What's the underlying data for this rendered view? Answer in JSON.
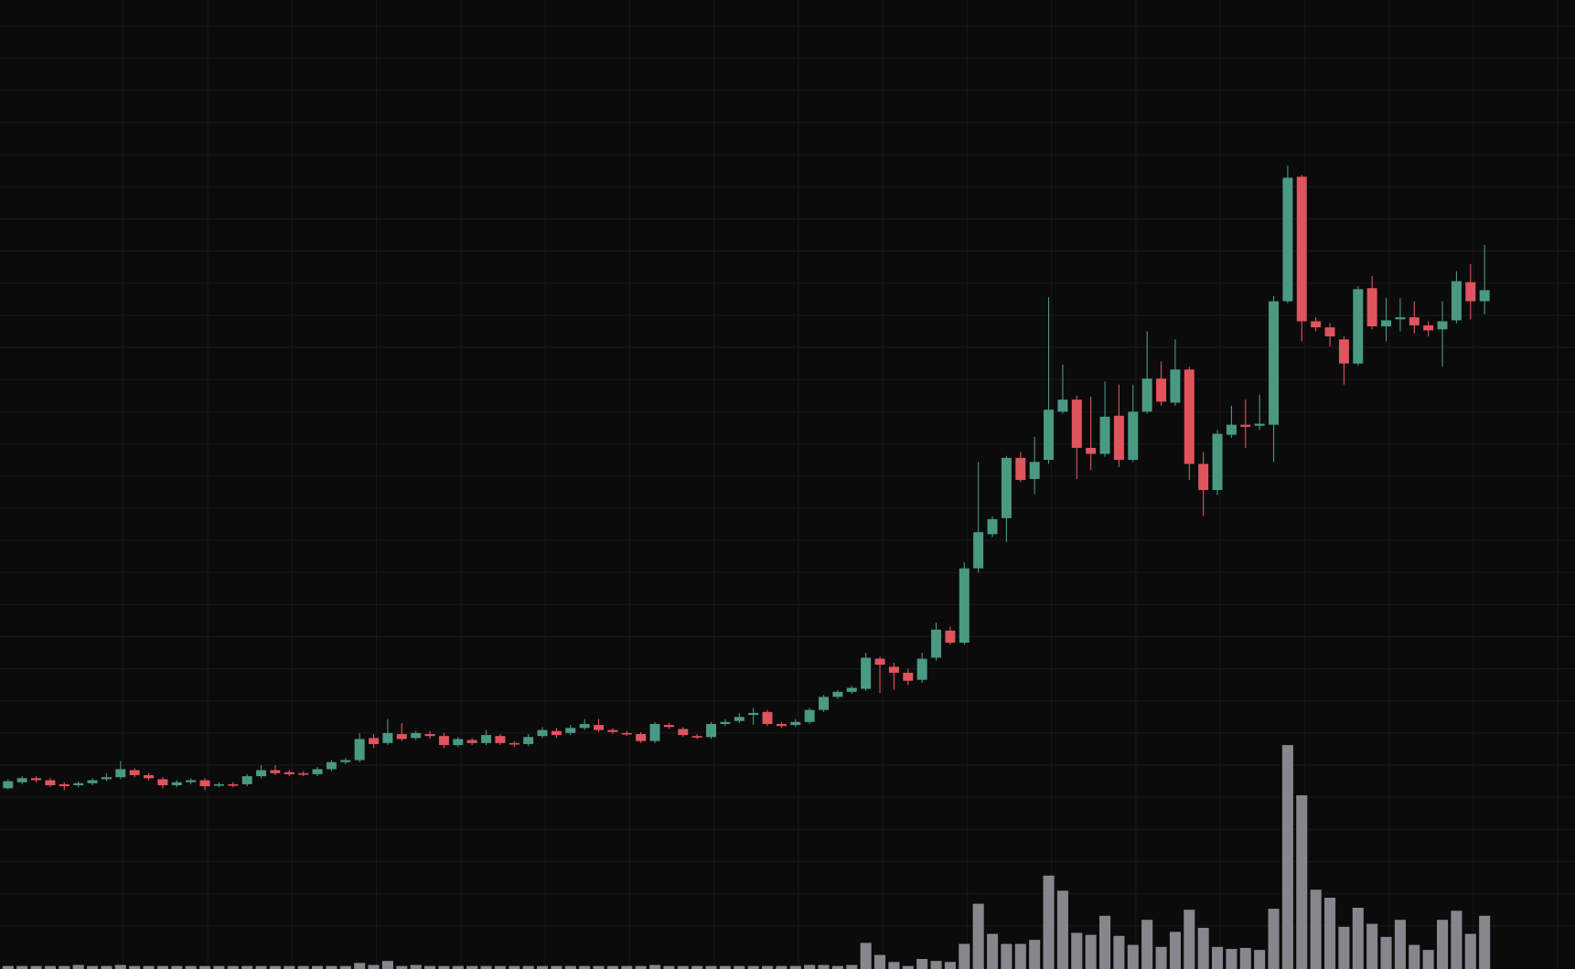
{
  "chart_data": {
    "type": "candlestick",
    "open": [
      180,
      186,
      190,
      188,
      184,
      183,
      185,
      189,
      191,
      198,
      193,
      189,
      183,
      186,
      188,
      183,
      184,
      184,
      192,
      198,
      196,
      195,
      194,
      199,
      206,
      208,
      230,
      225,
      234,
      230,
      234,
      232,
      223,
      228,
      225,
      232,
      225,
      224,
      232,
      237,
      235,
      240,
      243,
      238,
      235,
      234,
      227,
      243,
      239,
      232,
      231,
      244,
      247,
      253,
      256,
      244,
      243,
      246,
      258,
      271,
      276,
      279,
      309,
      301,
      295,
      288,
      310,
      337,
      325,
      399,
      433,
      449,
      509,
      488,
      507,
      555,
      567,
      519,
      513,
      551,
      507,
      555,
      588,
      564,
      597,
      503,
      477,
      532,
      542,
      541,
      542,
      665,
      789,
      645,
      639,
      627,
      603,
      678,
      640,
      647,
      649,
      641,
      637,
      646,
      684,
      665
    ],
    "high": [
      189,
      192,
      192,
      190,
      186,
      187,
      190,
      195,
      207,
      200,
      195,
      191,
      188,
      190,
      190,
      186,
      186,
      194,
      203,
      203,
      198,
      197,
      201,
      208,
      210,
      235,
      234,
      249,
      245,
      237,
      237,
      235,
      231,
      230,
      238,
      234,
      227,
      234,
      241,
      240,
      243,
      249,
      249,
      240,
      237,
      236,
      246,
      245,
      241,
      234,
      246,
      249,
      255,
      260,
      258,
      246,
      249,
      260,
      273,
      278,
      282,
      315,
      311,
      305,
      299,
      315,
      345,
      341,
      405,
      505,
      451,
      511,
      515,
      530,
      669,
      602,
      571,
      570,
      585,
      582,
      582,
      635,
      605,
      627,
      600,
      515,
      537,
      561,
      567,
      572,
      670,
      800,
      791,
      649,
      643,
      630,
      680,
      690,
      668,
      668,
      665,
      645,
      665,
      695,
      702,
      721
    ],
    "low": [
      179,
      184,
      186,
      181,
      178,
      181,
      183,
      187,
      189,
      191,
      188,
      180,
      181,
      184,
      178,
      181,
      181,
      182,
      190,
      193,
      192,
      192,
      192,
      197,
      204,
      206,
      220,
      223,
      227,
      228,
      229,
      220,
      221,
      223,
      223,
      223,
      221,
      222,
      230,
      230,
      233,
      238,
      236,
      234,
      232,
      225,
      225,
      239,
      231,
      229,
      229,
      242,
      245,
      243,
      242,
      240,
      241,
      244,
      256,
      269,
      274,
      277,
      275,
      278,
      283,
      285,
      307,
      323,
      323,
      395,
      430,
      425,
      485,
      473,
      503,
      553,
      488,
      497,
      510,
      500,
      505,
      553,
      561,
      561,
      487,
      451,
      472,
      529,
      519,
      537,
      505,
      663,
      625,
      635,
      620,
      582,
      601,
      637,
      625,
      635,
      633,
      630,
      600,
      643,
      647,
      652
    ],
    "close": [
      187,
      190,
      188,
      183,
      182,
      185,
      188,
      191,
      199,
      193,
      190,
      183,
      186,
      188,
      182,
      184,
      183,
      192,
      198,
      195,
      194,
      194,
      199,
      206,
      208,
      229,
      224,
      235,
      229,
      235,
      232,
      223,
      229,
      225,
      233,
      225,
      224,
      231,
      238,
      233,
      240,
      244,
      238,
      236,
      234,
      227,
      244,
      241,
      233,
      231,
      244,
      246,
      251,
      255,
      244,
      242,
      246,
      258,
      271,
      276,
      280,
      310,
      303,
      295,
      287,
      309,
      338,
      325,
      399,
      435,
      448,
      509,
      487,
      505,
      557,
      567,
      519,
      513,
      550,
      507,
      555,
      588,
      565,
      597,
      503,
      477,
      533,
      542,
      540,
      543,
      665,
      788,
      645,
      639,
      630,
      603,
      677,
      640,
      646,
      649,
      641,
      636,
      645,
      685,
      665,
      676
    ],
    "volume": [
      3,
      3,
      3,
      3,
      3,
      4,
      3,
      3,
      4,
      3,
      3,
      3,
      3,
      3,
      3,
      3,
      3,
      3,
      3,
      3,
      3,
      3,
      3,
      3,
      3,
      6,
      4,
      8,
      3,
      4,
      3,
      3,
      3,
      3,
      3,
      3,
      3,
      3,
      3,
      3,
      3,
      3,
      3,
      3,
      3,
      3,
      4,
      3,
      3,
      3,
      3,
      3,
      3,
      3,
      3,
      3,
      3,
      4,
      4,
      3,
      4,
      26,
      14,
      7,
      3,
      10,
      8,
      7,
      25,
      65,
      35,
      25,
      25,
      29,
      93,
      78,
      36,
      34,
      53,
      33,
      24,
      49,
      22,
      37,
      59,
      41,
      22,
      20,
      21,
      19,
      60,
      223,
      173,
      79,
      71,
      42,
      61,
      45,
      32,
      49,
      24,
      19,
      49,
      58,
      35,
      53
    ],
    "ylim": [
      0,
      965
    ],
    "y2lim": [
      0,
      965
    ],
    "yticks": [
      43,
      75,
      107,
      139,
      171,
      203,
      235,
      267,
      299,
      331,
      363,
      395,
      427,
      459,
      491,
      523,
      555,
      587,
      619,
      651,
      683,
      715,
      747,
      779,
      811,
      843,
      875,
      907,
      939
    ],
    "xticks": [
      8.2,
      14.2,
      20.2,
      26.2,
      32.2,
      38.2,
      44.2,
      50.2,
      56.2,
      62.2,
      68.2,
      74.2,
      80.2,
      86.2,
      92.2,
      98.2,
      104.2,
      110.2
    ],
    "grid": true,
    "up_color": "#4a9a82",
    "down_color": "#e0545e",
    "volume_color": "#86868c"
  }
}
